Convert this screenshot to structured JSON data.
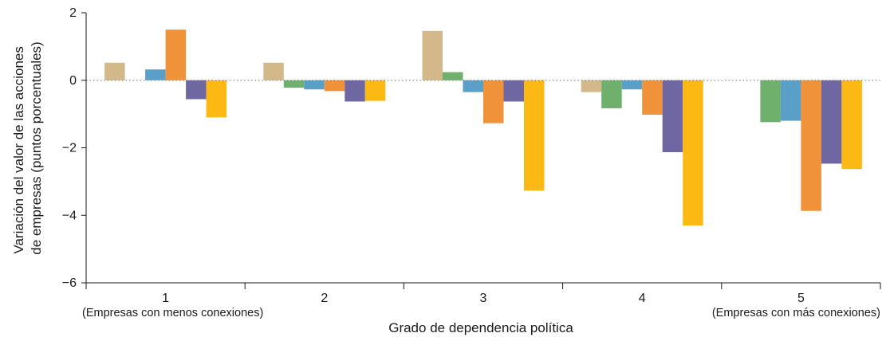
{
  "chart_data": {
    "type": "bar",
    "title": "",
    "xlabel": "Grado de dependencia política",
    "ylabel_lines": [
      "Variación del valor de las acciones",
      "de empresas (puntos porcentuales)"
    ],
    "categories": [
      "1",
      "2",
      "3",
      "4",
      "5"
    ],
    "category_notes": {
      "first": "(Empresas con menos conexiones)",
      "last": "(Empresas con más conexiones)"
    },
    "ylim": [
      -6,
      2
    ],
    "yticks": [
      2,
      0,
      -2,
      -4,
      -6
    ],
    "ytick_labels": [
      "2",
      "0",
      "−2",
      "−4",
      "−6"
    ],
    "zero_line": "dotted",
    "legend": "none",
    "series": [
      {
        "color": "#d3b98a",
        "values": [
          0.52,
          0.52,
          1.46,
          -0.35,
          null
        ]
      },
      {
        "color": "#6fb06d",
        "values": [
          null,
          -0.22,
          0.24,
          -0.83,
          -1.24
        ]
      },
      {
        "color": "#5a9fc8",
        "values": [
          0.32,
          -0.27,
          -0.35,
          -0.27,
          -1.2
        ]
      },
      {
        "color": "#f0923a",
        "values": [
          1.5,
          -0.32,
          -1.27,
          -1.02,
          -3.87
        ]
      },
      {
        "color": "#6e67a1",
        "values": [
          -0.56,
          -0.63,
          -0.63,
          -2.13,
          -2.47
        ]
      },
      {
        "color": "#fdb913",
        "values": [
          -1.1,
          -0.61,
          -3.27,
          -4.3,
          -2.63
        ]
      }
    ]
  }
}
